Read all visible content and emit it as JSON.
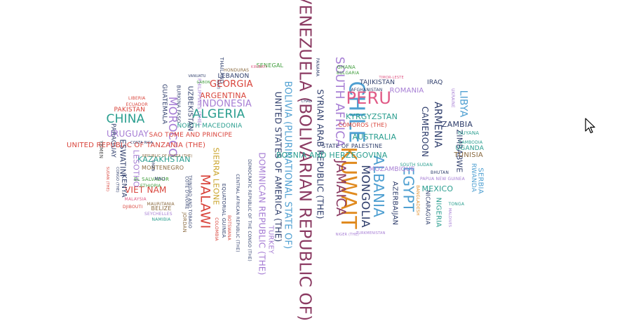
{
  "colors": {
    "blue": "#4E9FD1",
    "pink": "#E05A86",
    "purple": "#A67DD4",
    "orange": "#E08A1E",
    "teal": "#2A9E8F",
    "red": "#D9443B",
    "navy": "#2E3D6B",
    "green": "#3E9C3A",
    "maroon": "#8B3A62",
    "gold": "#C9A227",
    "brown": "#8A6A3F",
    "darkgray": "#444444"
  },
  "words": [
    {
      "text": "VENEZUELA (BOLIVARIAN REPUBLIC OF)",
      "color": "maroon",
      "dir": "v"
    },
    {
      "text": "CHILE",
      "color": "blue",
      "dir": "v"
    },
    {
      "text": "KUWAIT",
      "color": "orange",
      "dir": "v"
    },
    {
      "text": "PERU",
      "color": "pink",
      "dir": "h"
    },
    {
      "text": "SOUTH AFRICA",
      "color": "purple",
      "dir": "v"
    },
    {
      "text": "JAMAICA",
      "color": "maroon",
      "dir": "v"
    },
    {
      "text": "ALBANIA",
      "color": "blue",
      "dir": "v"
    },
    {
      "text": "EGYPT",
      "color": "blue",
      "dir": "v"
    },
    {
      "text": "MONGOLIA",
      "color": "navy",
      "dir": "v"
    },
    {
      "text": "BOLIVIA (PLURINATIONAL STATE OF)",
      "color": "blue",
      "dir": "v"
    },
    {
      "text": "SYRIAN ARAB REPUBLIC (THE)",
      "color": "navy",
      "dir": "v"
    },
    {
      "text": "UNITED STATES OF AMERICA (THE)",
      "color": "navy",
      "dir": "v"
    },
    {
      "text": "MALAWI",
      "color": "red",
      "dir": "v"
    },
    {
      "text": "MOROCCO",
      "color": "purple",
      "dir": "v"
    },
    {
      "text": "DOMINICAN REPUBLIC (THE)",
      "color": "purple",
      "dir": "v"
    },
    {
      "text": "TURKEY",
      "color": "purple",
      "dir": "v"
    },
    {
      "text": "CHINA",
      "color": "teal",
      "dir": "h"
    },
    {
      "text": "ALGERIA",
      "color": "teal",
      "dir": "h"
    },
    {
      "text": "INDONESIA",
      "color": "purple",
      "dir": "h"
    },
    {
      "text": "GEORGIA",
      "color": "red",
      "dir": "h"
    },
    {
      "text": "ARGENTINA",
      "color": "red",
      "dir": "h"
    },
    {
      "text": "LEBANON",
      "color": "navy",
      "dir": "h"
    },
    {
      "text": "NORTH MACEDONIA",
      "color": "teal",
      "dir": "h"
    },
    {
      "text": "SAO TOME AND PRINCIPE",
      "color": "red",
      "dir": "h"
    },
    {
      "text": "UNITED REPUBLIC OF TANZANIA (THE)",
      "color": "red",
      "dir": "h"
    },
    {
      "text": "KAZAKHSTAN",
      "color": "teal",
      "dir": "h"
    },
    {
      "text": "MONTENEGRO",
      "color": "brown",
      "dir": "h"
    },
    {
      "text": "VIET NAM",
      "color": "red",
      "dir": "h"
    },
    {
      "text": "URUGUAY",
      "color": "purple",
      "dir": "h"
    },
    {
      "text": "PAKISTAN",
      "color": "red",
      "dir": "h"
    },
    {
      "text": "SIERRA LEONE",
      "color": "gold",
      "dir": "v"
    },
    {
      "text": "ESWATINI",
      "color": "navy",
      "dir": "v"
    },
    {
      "text": "LESOTHO",
      "color": "purple",
      "dir": "v"
    },
    {
      "text": "KENYA",
      "color": "navy",
      "dir": "v"
    },
    {
      "text": "PARAGUAY",
      "color": "navy",
      "dir": "v"
    },
    {
      "text": "UZBEKISTAN",
      "color": "navy",
      "dir": "v"
    },
    {
      "text": "GUATEMALA",
      "color": "navy",
      "dir": "v"
    },
    {
      "text": "BOSNIA AND HERZEGOVINA",
      "color": "teal",
      "dir": "h"
    },
    {
      "text": "AUSTRALIA",
      "color": "teal",
      "dir": "h"
    },
    {
      "text": "STATE OF PALESTINE",
      "color": "navy",
      "dir": "h"
    },
    {
      "text": "KYRGYZSTAN",
      "color": "teal",
      "dir": "h"
    },
    {
      "text": "COMOROS (THE)",
      "color": "red",
      "dir": "h"
    },
    {
      "text": "TAJIKISTAN",
      "color": "navy",
      "dir": "h"
    },
    {
      "text": "IRAQ",
      "color": "navy",
      "dir": "h"
    },
    {
      "text": "ROMANIA",
      "color": "purple",
      "dir": "h"
    },
    {
      "text": "ARMENIA",
      "color": "navy",
      "dir": "v"
    },
    {
      "text": "CAMEROON",
      "color": "navy",
      "dir": "v"
    },
    {
      "text": "AZERBAIJAN",
      "color": "navy",
      "dir": "v"
    },
    {
      "text": "MOZAMBIQUE",
      "color": "purple",
      "dir": "h"
    },
    {
      "text": "LIBYA",
      "color": "blue",
      "dir": "v"
    },
    {
      "text": "ZAMBIA",
      "color": "navy",
      "dir": "h"
    },
    {
      "text": "ZIMBABWE",
      "color": "navy",
      "dir": "v"
    },
    {
      "text": "UGANDA",
      "color": "teal",
      "dir": "h"
    },
    {
      "text": "TUNISIA",
      "color": "brown",
      "dir": "h"
    },
    {
      "text": "RWANDA",
      "color": "blue",
      "dir": "v"
    },
    {
      "text": "SERBIA",
      "color": "blue",
      "dir": "v"
    },
    {
      "text": "MEXICO",
      "color": "teal",
      "dir": "h"
    },
    {
      "text": "NIGERIA",
      "color": "teal",
      "dir": "v"
    },
    {
      "text": "NICARAGUA",
      "color": "navy",
      "dir": "v"
    },
    {
      "text": "BELIZE",
      "color": "brown",
      "dir": "h"
    },
    {
      "text": "EL SALVADOR",
      "color": "green",
      "dir": "h"
    },
    {
      "text": "SENEGAL",
      "color": "green",
      "dir": "h"
    },
    {
      "text": "GHANA",
      "color": "green",
      "dir": "h"
    },
    {
      "text": "BULGARIA",
      "color": "green",
      "dir": "h"
    },
    {
      "text": "AFGHANISTAN",
      "color": "navy",
      "dir": "h"
    },
    {
      "text": "HONDURAS",
      "color": "brown",
      "dir": "h"
    },
    {
      "text": "THAILAND",
      "color": "navy",
      "dir": "v"
    },
    {
      "text": "PHILIPPINES (THE)",
      "color": "purple",
      "dir": "v"
    },
    {
      "text": "BURKINA FASO",
      "color": "navy",
      "dir": "v"
    },
    {
      "text": "ECUADOR",
      "color": "red",
      "dir": "h"
    },
    {
      "text": "LIBERIA",
      "color": "red",
      "dir": "h"
    },
    {
      "text": "JORDAN",
      "color": "brown",
      "dir": "v"
    },
    {
      "text": "COLOMBIA",
      "color": "red",
      "dir": "v"
    },
    {
      "text": "BOTSWANA",
      "color": "red",
      "dir": "v"
    },
    {
      "text": "EQUATORIAL GUINEA",
      "color": "navy",
      "dir": "v"
    },
    {
      "text": "CENTRAL AFRICAN REPUBLIC (THE)",
      "color": "navy",
      "dir": "v"
    },
    {
      "text": "DEMOCRATIC REPUBLIC OF THE CONGO (THE)",
      "color": "navy",
      "dir": "v"
    },
    {
      "text": "COTE D'IVOIRE",
      "color": "navy",
      "dir": "v"
    },
    {
      "text": "TRINIDAD AND TOBAGO",
      "color": "navy",
      "dir": "v"
    },
    {
      "text": "YEMEN",
      "color": "darkgray",
      "dir": "v"
    },
    {
      "text": "MALI",
      "color": "navy",
      "dir": "h"
    },
    {
      "text": "MALAYSIA",
      "color": "pink",
      "dir": "h"
    },
    {
      "text": "MAURITANIA",
      "color": "brown",
      "dir": "h"
    },
    {
      "text": "DJIBOUTI",
      "color": "red",
      "dir": "h"
    },
    {
      "text": "SEYCHELLES",
      "color": "purple",
      "dir": "h"
    },
    {
      "text": "NAMIBIA",
      "color": "teal",
      "dir": "h"
    },
    {
      "text": "ETHIOPIA",
      "color": "green",
      "dir": "h"
    },
    {
      "text": "BHUTAN",
      "color": "navy",
      "dir": "h"
    },
    {
      "text": "GUYANA",
      "color": "teal",
      "dir": "h"
    },
    {
      "text": "CAMBODIA",
      "color": "teal",
      "dir": "h"
    },
    {
      "text": "TONGA",
      "color": "teal",
      "dir": "h"
    },
    {
      "text": "PAPUA NEW GUINEA",
      "color": "purple",
      "dir": "h"
    },
    {
      "text": "SOUTH SUDAN",
      "color": "teal",
      "dir": "h"
    },
    {
      "text": "BANGLADESH",
      "color": "orange",
      "dir": "v"
    },
    {
      "text": "UKRAINE",
      "color": "purple",
      "dir": "v"
    },
    {
      "text": "PANAMA",
      "color": "navy",
      "dir": "v"
    },
    {
      "text": "KIRIBATI",
      "color": "pink",
      "dir": "h"
    },
    {
      "text": "COSTA RICA",
      "color": "navy",
      "dir": "h"
    },
    {
      "text": "NIGER (THE)",
      "color": "purple",
      "dir": "h"
    },
    {
      "text": "TURKMENISTAN",
      "color": "purple",
      "dir": "h"
    },
    {
      "text": "GABON",
      "color": "green",
      "dir": "h"
    },
    {
      "text": "CHAD",
      "color": "navy",
      "dir": "h"
    },
    {
      "text": "OMAN",
      "color": "navy",
      "dir": "v"
    },
    {
      "text": "CONGO (THE)",
      "color": "navy",
      "dir": "v"
    },
    {
      "text": "MALDIVES",
      "color": "purple",
      "dir": "v"
    },
    {
      "text": "HAITI",
      "color": "navy",
      "dir": "v"
    },
    {
      "text": "VANUATU",
      "color": "navy",
      "dir": "h"
    },
    {
      "text": "TIMOR-LESTE",
      "color": "pink",
      "dir": "h"
    },
    {
      "text": "SUDAN (THE)",
      "color": "red",
      "dir": "v"
    },
    {
      "text": "REPUBLIC OF KOREA (THE)",
      "color": "brown",
      "dir": "h"
    }
  ]
}
